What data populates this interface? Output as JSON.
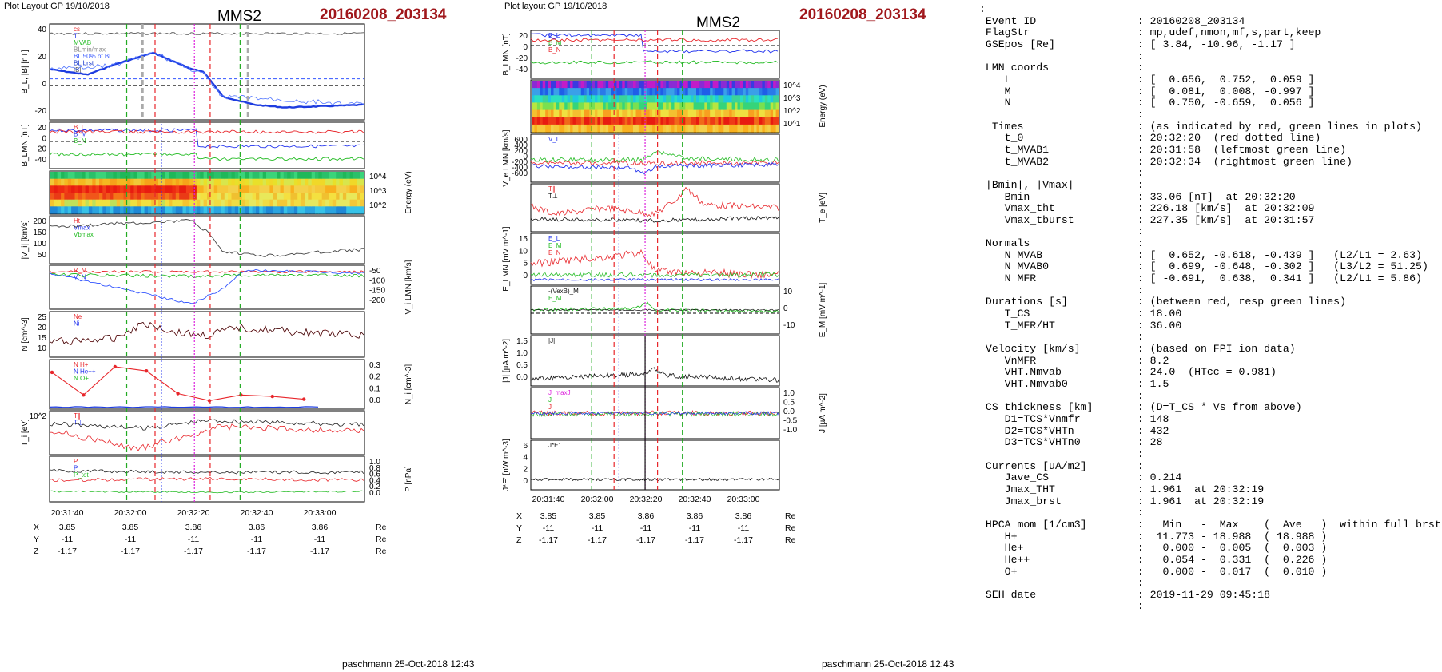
{
  "left": {
    "layout_label": "Plot Layout GP 19/10/2018",
    "title": "MMS2",
    "event": "20160208_203134",
    "footer": "paschmann 25-Oct-2018 12:43",
    "time_ticks": [
      "20:31:40",
      "20:32:00",
      "20:32:20",
      "20:32:40",
      "20:33:00"
    ],
    "coords": {
      "labels": [
        "X",
        "Y",
        "Z"
      ],
      "rows": [
        [
          "3.85",
          "3.85",
          "3.86",
          "3.86",
          "3.86"
        ],
        [
          "-11",
          "-11",
          "-11",
          "-11",
          "-11"
        ],
        [
          "-1.17",
          "-1.17",
          "-1.17",
          "-1.17",
          "-1.17"
        ]
      ],
      "unit": "Re"
    },
    "panels": [
      {
        "ylabel": "B_L, |B| [nT]",
        "ticks": [
          "40",
          "20",
          "0",
          "-20"
        ],
        "legend": [
          "cs",
          "T",
          "MVAB",
          "BLmin/max",
          "BL 50% of BL",
          "BL brst",
          "|B|"
        ]
      },
      {
        "ylabel": "B_LMN [nT]",
        "ticks": [
          "20",
          "0",
          "-20",
          "-40"
        ],
        "legend": [
          "B_L",
          "B_M",
          "B_N"
        ]
      },
      {
        "ylabel": "Energy (eV)",
        "ticks": [
          "10^4",
          "10^3",
          "10^2"
        ],
        "legend": []
      },
      {
        "ylabel": "|V_i| [km/s]",
        "ticks": [
          "200",
          "150",
          "100",
          "50"
        ],
        "legend": [
          "Ht",
          "Vmax",
          "Vbmax"
        ]
      },
      {
        "ylabel": "V_i LMN [km/s]",
        "ticks": [
          "-50",
          "-100",
          "-150",
          "-200"
        ],
        "legend": [
          "V_M",
          "V_N"
        ]
      },
      {
        "ylabel": "N [cm^-3]",
        "ticks": [
          "25",
          "20",
          "15",
          "10"
        ],
        "legend": [
          "Ne",
          "Ni"
        ]
      },
      {
        "ylabel": "N_i [cm^-3]",
        "ticks": [
          "0.3",
          "0.2",
          "0.1",
          "0.0"
        ],
        "legend": [
          "N H+",
          "N He++",
          "N O+"
        ]
      },
      {
        "ylabel": "T_i [eV]",
        "ticks": [
          "10^2"
        ],
        "legend": [
          "T∥",
          "T⊥"
        ]
      },
      {
        "ylabel": "P [nPa]",
        "ticks": [
          "1.0",
          "0.8",
          "0.6",
          "0.4",
          "0.2",
          "0.0"
        ],
        "legend": [
          "P",
          "P",
          "P_tot"
        ]
      }
    ],
    "chart_data": {
      "type": "line",
      "x": [
        "20:31:40",
        "20:32:00",
        "20:32:20",
        "20:32:40",
        "20:33:00"
      ],
      "series": [
        {
          "name": "BL brst",
          "values": [
            12,
            17,
            8,
            -14,
            -18
          ]
        },
        {
          "name": "|B|",
          "values": [
            40,
            38,
            38,
            37,
            38
          ]
        }
      ],
      "ylim": [
        -25,
        45
      ],
      "markers": {
        "t_0": "20:32:20",
        "t_MVAB1": "20:31:58",
        "t_MVAB2": "20:32:34"
      }
    },
    "hpca_chart": {
      "type": "line",
      "series": [
        {
          "name": "N He++",
          "values": [
            0.26,
            0.1,
            0.3,
            0.27,
            0.11,
            0.06,
            0.1,
            0.09,
            0.07
          ]
        }
      ],
      "ylim": [
        0,
        0.35
      ]
    }
  },
  "middle": {
    "layout_label": "Plot layout GP 19/10/2018",
    "title": "MMS2",
    "event": "20160208_203134",
    "footer": "paschmann 25-Oct-2018 12:43",
    "time_ticks": [
      "20:31:40",
      "20:32:00",
      "20:32:20",
      "20:32:40",
      "20:33:00"
    ],
    "coords": {
      "labels": [
        "X",
        "Y",
        "Z"
      ],
      "rows": [
        [
          "3.85",
          "3.85",
          "3.86",
          "3.86",
          "3.86"
        ],
        [
          "-11",
          "-11",
          "-11",
          "-11",
          "-11"
        ],
        [
          "-1.17",
          "-1.17",
          "-1.17",
          "-1.17",
          "-1.17"
        ]
      ],
      "unit": "Re"
    },
    "panels": [
      {
        "ylabel": "B_LMN [nT]",
        "ticks": [
          "20",
          "0",
          "-20",
          "-40"
        ],
        "legend": [
          "B_L",
          "B_M",
          "B_N"
        ]
      },
      {
        "ylabel": "Energy (eV)",
        "ticks": [
          "10^4",
          "10^3",
          "10^2",
          "10^1"
        ],
        "legend": []
      },
      {
        "ylabel": "V_e LMN [km/s]",
        "ticks": [
          "600",
          "400",
          "200",
          "0",
          "-200",
          "-400",
          "-600"
        ],
        "legend": [
          "V_L"
        ]
      },
      {
        "ylabel": "T_e [eV]",
        "ticks": [],
        "legend": [
          "T∥",
          "T⊥"
        ]
      },
      {
        "ylabel": "E_LMN [mV m^-1]",
        "ticks": [
          "15",
          "10",
          "5",
          "0"
        ],
        "legend": [
          "E_L",
          "E_M",
          "E_N"
        ]
      },
      {
        "ylabel": "E_M [mV m^-1]",
        "ticks": [
          "10",
          "0",
          "-10"
        ],
        "legend": [
          "-(VexB)_M",
          "E_M"
        ]
      },
      {
        "ylabel": "|J| [µA m^-2]",
        "ticks": [
          "1.5",
          "1.0",
          "0.5",
          "0.0"
        ],
        "legend": [
          "|J|"
        ]
      },
      {
        "ylabel": "J [µA m^-2]",
        "ticks": [
          "1.0",
          "0.5",
          "0.0",
          "-0.5",
          "-1.0"
        ],
        "legend": [
          "J_maxJ",
          "J",
          "J"
        ]
      },
      {
        "ylabel": "J*E' [nW m^-3]",
        "ticks": [
          "6",
          "4",
          "2",
          "0"
        ],
        "legend": [
          "J*E'"
        ]
      }
    ],
    "chart_data": {
      "type": "line",
      "x": [
        "20:31:40",
        "20:32:00",
        "20:32:20",
        "20:32:40",
        "20:33:00"
      ],
      "series": [
        {
          "name": "|J|",
          "values": [
            0.2,
            0.3,
            0.5,
            0.3,
            0.2
          ]
        },
        {
          "name": "J*E'",
          "values": [
            0,
            0,
            0.2,
            0,
            0
          ]
        }
      ],
      "ylim": [
        0,
        1.8
      ]
    }
  },
  "info": {
    "lines": [
      ":",
      " Event ID                : 20160208_203134",
      " FlagStr                 : mp,udef,nmon,mf,s,part,keep",
      " GSEpos [Re]             : [ 3.84, -10.96, -1.17 ]",
      "                         :",
      " LMN coords              :",
      "    L                    : [  0.656,  0.752,  0.059 ]",
      "    M                    : [  0.081,  0.008, -0.997 ]",
      "    N                    : [  0.750, -0.659,  0.056 ]",
      "                         :",
      "  Times                  : (as indicated by red, green lines in plots)",
      "    t_0                  : 20:32:20  (red dotted line)",
      "    t_MVAB1              : 20:31:58  (leftmost green line)",
      "    t_MVAB2              : 20:32:34  (rightmost green line)",
      "                         :",
      " |Bmin|, |Vmax|          :",
      "    Bmin                 : 33.06 [nT]  at 20:32:20",
      "    Vmax_tht             : 226.18 [km/s]  at 20:32:09",
      "    Vmax_tburst          : 227.35 [km/s]  at 20:31:57",
      "                         :",
      " Normals                 :",
      "    N MVAB               : [  0.652, -0.618, -0.439 ]   (L2/L1 = 2.63)",
      "    N MVAB0              : [  0.699, -0.648, -0.302 ]   (L3/L2 = 51.25)",
      "    N MFR                : [ -0.691,  0.638,  0.341 ]   (L2/L1 = 5.86)",
      "                         :",
      " Durations [s]           : (between red, resp green lines)",
      "    T_CS                 : 18.00",
      "    T_MFR/HT             : 36.00",
      "                         :",
      " Velocity [km/s]         : (based on FPI ion data)",
      "    VnMFR                : 8.2",
      "    VHT.Nmvab            : 24.0  (HTcc = 0.981)",
      "    VHT.Nmvab0           : 1.5",
      "                         :",
      " CS thickness [km]       : (D=T_CS * Vs from above)",
      "    D1=TCS*Vnmfr         : 148",
      "    D2=TCS*VHTn          : 432",
      "    D3=TCS*VHTn0         : 28",
      "                         :",
      " Currents [uA/m2]        :",
      "    Jave_CS              : 0.214",
      "    Jmax_THT             : 1.961  at 20:32:19",
      "    Jmax_brst            : 1.961  at 20:32:19",
      "                         :",
      " HPCA mom [1/cm3]        :   Min   -  Max    (  Ave   )  within full brst int",
      "    H+                   :  11.773 - 18.988  ( 18.988 )",
      "    He+                  :   0.000 -  0.005  (  0.003 )",
      "    He++                 :   0.054 -  0.331  (  0.226 )",
      "    O+                   :   0.000 -  0.017  (  0.010 )",
      "                         :",
      " SEH date                : 2019-11-29 09:45:18",
      "                         :"
    ]
  }
}
